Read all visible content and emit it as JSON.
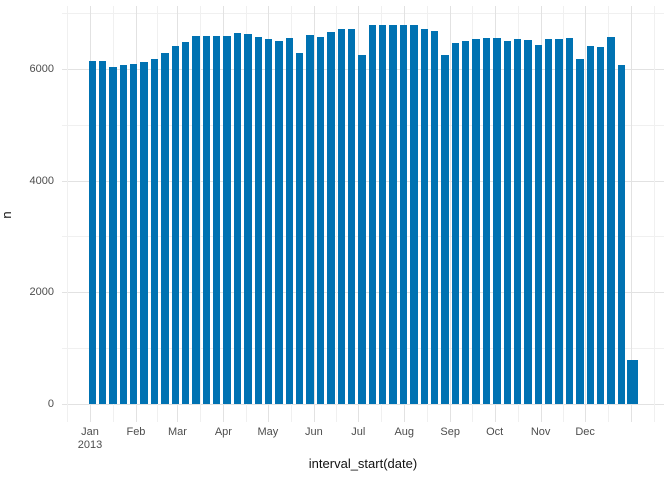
{
  "figure": {
    "background": "#ffffff"
  },
  "colors": {
    "bar": "#0072B2",
    "grid_major": "#e2e2e2",
    "grid_minor": "#f0f0f0",
    "tick_label": "#4d4d4d",
    "axis_title": "#111111"
  },
  "chart_data": {
    "type": "bar",
    "title": "",
    "xlabel": "interval_start(date)",
    "ylabel": "n",
    "x_interval": "week",
    "grid": true,
    "legend": false,
    "ylim": [
      0,
      7130
    ],
    "y_major_ticks": [
      0,
      2000,
      4000,
      6000
    ],
    "y_minor_gridlines": [
      1000,
      3000,
      5000,
      7000
    ],
    "x_ticks": [
      {
        "label": "Jan",
        "sublabel": "2013",
        "day_offset": 0
      },
      {
        "label": "Feb",
        "day_offset": 31
      },
      {
        "label": "Mar",
        "day_offset": 59
      },
      {
        "label": "Apr",
        "day_offset": 90
      },
      {
        "label": "May",
        "day_offset": 120
      },
      {
        "label": "Jun",
        "day_offset": 151
      },
      {
        "label": "Jul",
        "day_offset": 181
      },
      {
        "label": "Aug",
        "day_offset": 212
      },
      {
        "label": "Sep",
        "day_offset": 243
      },
      {
        "label": "Oct",
        "day_offset": 273
      },
      {
        "label": "Nov",
        "day_offset": 304
      },
      {
        "label": "Dec",
        "day_offset": 334
      }
    ],
    "x": [
      "2012-12-30",
      "2013-01-06",
      "2013-01-13",
      "2013-01-20",
      "2013-01-27",
      "2013-02-03",
      "2013-02-10",
      "2013-02-17",
      "2013-02-24",
      "2013-03-03",
      "2013-03-10",
      "2013-03-17",
      "2013-03-24",
      "2013-03-31",
      "2013-04-07",
      "2013-04-14",
      "2013-04-21",
      "2013-04-28",
      "2013-05-05",
      "2013-05-12",
      "2013-05-19",
      "2013-05-26",
      "2013-06-02",
      "2013-06-09",
      "2013-06-16",
      "2013-06-23",
      "2013-06-30",
      "2013-07-07",
      "2013-07-14",
      "2013-07-21",
      "2013-07-28",
      "2013-08-04",
      "2013-08-11",
      "2013-08-18",
      "2013-08-25",
      "2013-09-01",
      "2013-09-08",
      "2013-09-15",
      "2013-09-22",
      "2013-09-29",
      "2013-10-06",
      "2013-10-13",
      "2013-10-20",
      "2013-10-27",
      "2013-11-03",
      "2013-11-10",
      "2013-11-17",
      "2013-11-24",
      "2013-12-01",
      "2013-12-08",
      "2013-12-15",
      "2013-12-22",
      "2013-12-29"
    ],
    "values": [
      6130,
      6140,
      6025,
      6060,
      6085,
      6125,
      6175,
      6290,
      6415,
      6485,
      6590,
      6590,
      6590,
      6580,
      6640,
      6615,
      6560,
      6525,
      6500,
      6550,
      6285,
      6610,
      6570,
      6660,
      6705,
      6705,
      6255,
      6790,
      6775,
      6785,
      6785,
      6790,
      6710,
      6670,
      6240,
      6455,
      6500,
      6540,
      6545,
      6555,
      6495,
      6530,
      6515,
      6430,
      6535,
      6535,
      6550,
      6170,
      6410,
      6390,
      6570,
      6065,
      790
    ]
  }
}
